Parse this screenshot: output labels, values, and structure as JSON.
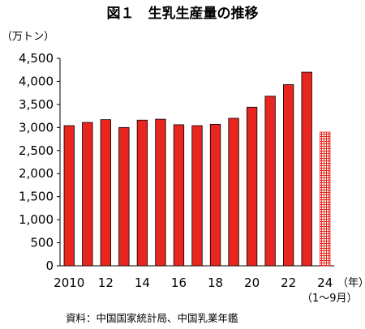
{
  "chart_data": {
    "type": "bar",
    "title": "図１　生乳生産量の推移",
    "ylabel": "（万トン）",
    "xunit": "（年）",
    "xnote": "（1～9月）",
    "source": "資料：中国国家統計局、中国乳業年鑑",
    "ylim": [
      0,
      4500
    ],
    "yticks": [
      "0",
      "500",
      "1,000",
      "1,500",
      "2,000",
      "2,500",
      "3,000",
      "3,500",
      "4,000",
      "4,500"
    ],
    "ytick_values": [
      0,
      500,
      1000,
      1500,
      2000,
      2500,
      3000,
      3500,
      4000,
      4500
    ],
    "categories": [
      "2010",
      "2011",
      "2012",
      "2013",
      "2014",
      "2015",
      "2016",
      "2017",
      "2018",
      "2019",
      "2020",
      "2021",
      "2022",
      "2023",
      "2024"
    ],
    "xtick_labels": [
      "2010",
      "",
      "12",
      "",
      "14",
      "",
      "16",
      "",
      "18",
      "",
      "20",
      "",
      "22",
      "",
      "24"
    ],
    "values": [
      3040,
      3110,
      3170,
      3000,
      3160,
      3180,
      3060,
      3040,
      3070,
      3200,
      3440,
      3680,
      3930,
      4200,
      2900
    ],
    "partial_year_index": 14,
    "grid": false,
    "colors": {
      "bar": "#e8251f",
      "bar_edge": "#000000",
      "partial": "#e8251f"
    }
  }
}
